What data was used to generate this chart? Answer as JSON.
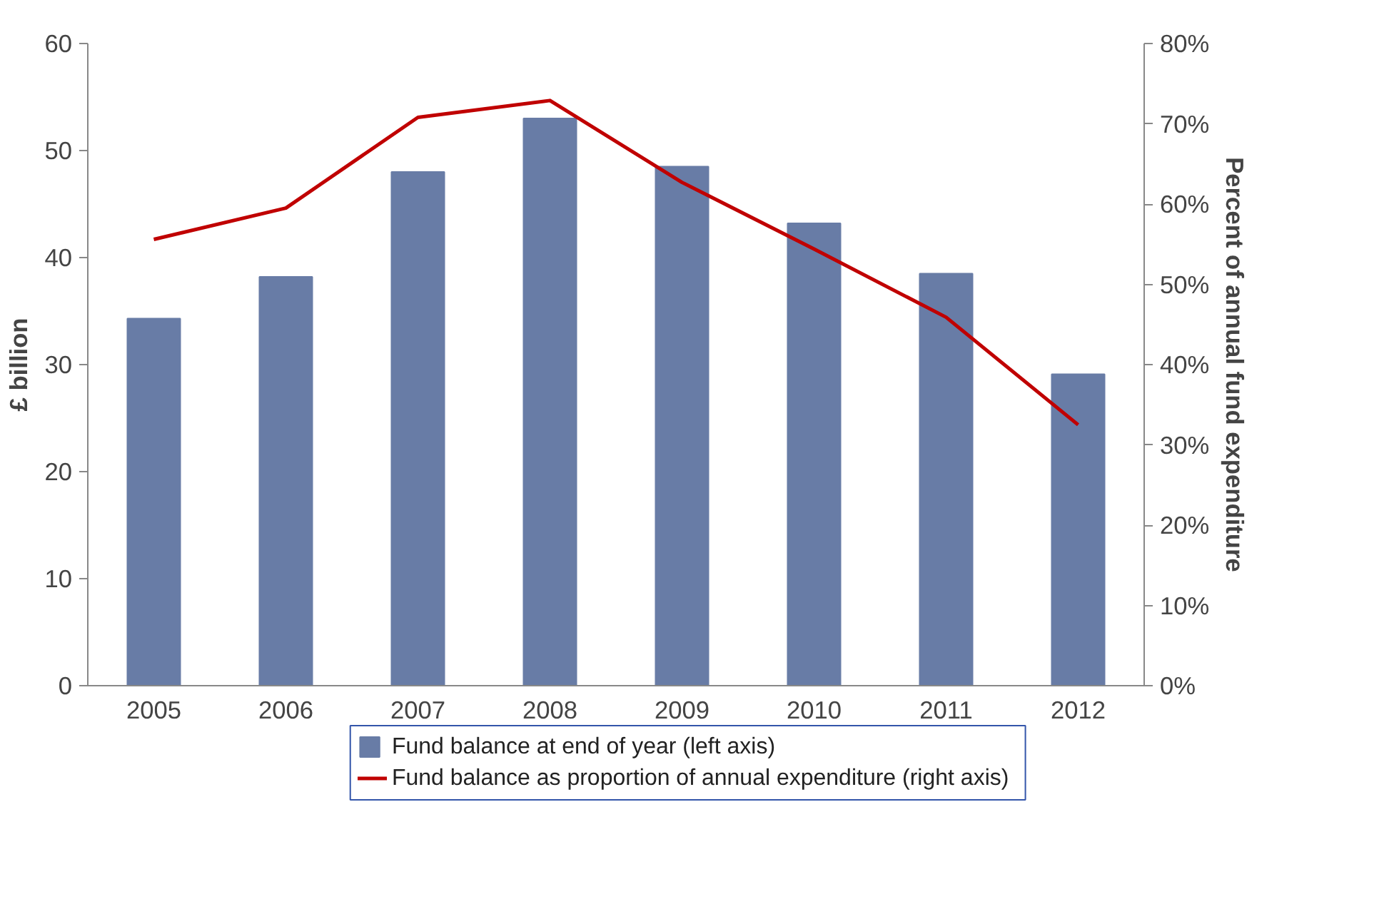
{
  "chart_data": {
    "type": "bar",
    "categories": [
      "2005",
      "2006",
      "2007",
      "2008",
      "2009",
      "2010",
      "2011",
      "2012"
    ],
    "ylabel": "£ billion",
    "y2label": "Percent of annual fund expenditure",
    "ylim": [
      0,
      60
    ],
    "yticks": [
      0,
      10,
      20,
      30,
      40,
      50,
      60
    ],
    "y2lim": [
      0,
      80
    ],
    "y2ticks": [
      {
        "value": 0,
        "label": "0%"
      },
      {
        "value": 10,
        "label": "10%"
      },
      {
        "value": 20,
        "label": "20%"
      },
      {
        "value": 30,
        "label": "30%"
      },
      {
        "value": 40,
        "label": "40%"
      },
      {
        "value": 50,
        "label": "50%"
      },
      {
        "value": 60,
        "label": "60%"
      },
      {
        "value": 70,
        "label": "70%"
      },
      {
        "value": 80,
        "label": "80%"
      }
    ],
    "series": [
      {
        "name": "Fund balance at end of year (left axis)",
        "color": "#687ca6",
        "values": [
          34.3,
          38.2,
          48.0,
          53.0,
          48.5,
          43.2,
          38.5,
          29.1
        ]
      },
      {
        "name": "Fund balance as proportion of annual expenditure (right axis)",
        "type": "line",
        "axis": "y2",
        "color": "#c00000",
        "values": [
          55.6,
          59.5,
          70.8,
          72.9,
          62.7,
          54.4,
          45.9,
          32.5
        ]
      }
    ],
    "grid": false,
    "legend": "bottom",
    "marker": "none",
    "line_style": "solid"
  }
}
